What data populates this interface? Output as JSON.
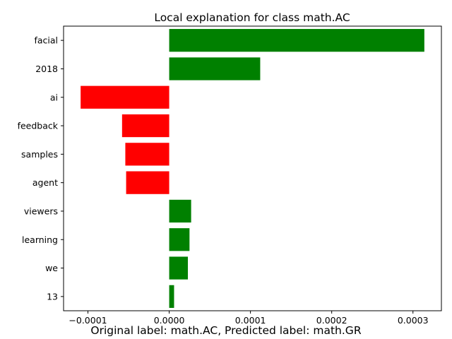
{
  "chart_data": {
    "type": "bar",
    "orientation": "horizontal",
    "title": "Local explanation for class math.AC",
    "xlabel": "",
    "ylabel": "",
    "categories": [
      "facial",
      "2018",
      "ai",
      "feedback",
      "samples",
      "agent",
      "viewers",
      "learning",
      "we",
      "13"
    ],
    "values": [
      0.000314,
      0.000112,
      -0.000109,
      -5.8e-05,
      -5.4e-05,
      -5.3e-05,
      2.7e-05,
      2.5e-05,
      2.3e-05,
      6e-06
    ],
    "xlim": [
      -0.00013,
      0.000335
    ],
    "xticks": [
      -0.0001,
      0.0,
      0.0001,
      0.0002,
      0.0003
    ],
    "xtick_labels": [
      "−0.0001",
      "0.0000",
      "0.0001",
      "0.0002",
      "0.0003"
    ],
    "grid": false,
    "colors": {
      "positive": "#008000",
      "negative": "#ff0000"
    }
  },
  "caption": "Original label: math.AC, Predicted label: math.GR"
}
